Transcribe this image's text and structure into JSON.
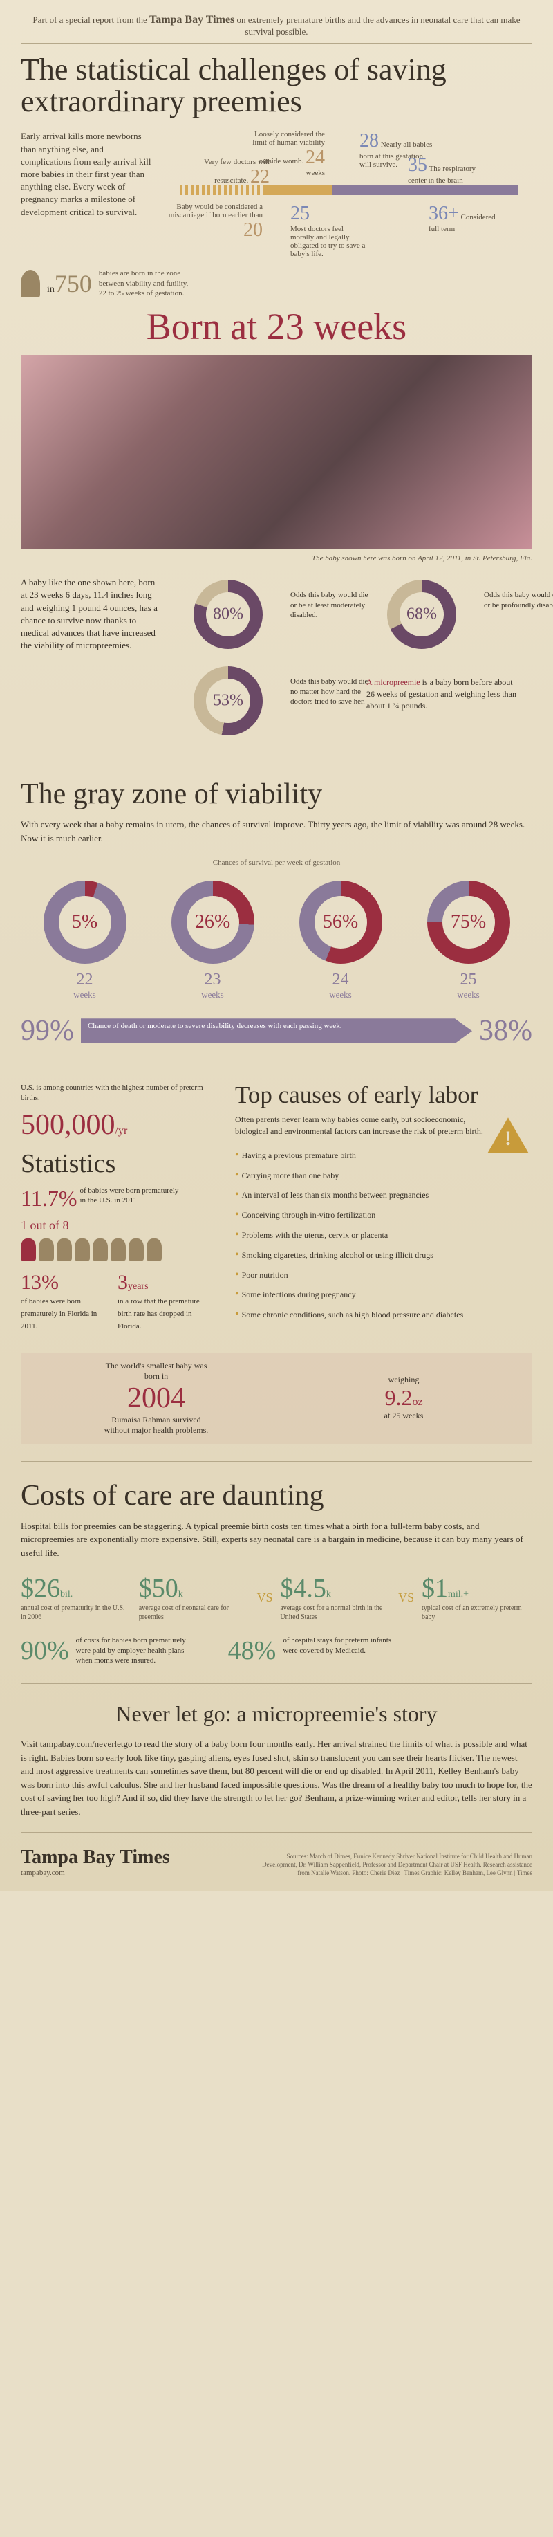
{
  "header": {
    "prefix": "Part of a special report from the",
    "brand": "Tampa Bay Times",
    "suffix": "on extremely premature births and the advances in neonatal care that can make survival possible."
  },
  "title": "The statistical challenges of saving extraordinary preemies",
  "intro": "Early arrival kills more newborns than anything else, and complications from early arrival kill more babies in their first year than anything else. Every week of pregnancy marks a milestone of development critical to survival.",
  "timeline": {
    "w20": {
      "n": "20",
      "label": "Baby would be considered a miscarriage if born earlier than"
    },
    "w22": {
      "n": "22",
      "label": "Very few doctors will resuscitate."
    },
    "w24": {
      "n": "24",
      "label": "Loosely considered the limit of human viability outside womb."
    },
    "w25": {
      "n": "25",
      "label": "Most doctors feel morally and legally obligated to try to save a baby's life."
    },
    "w28": {
      "n": "28",
      "label": "Nearly all babies born at this gestation will survive."
    },
    "w35": {
      "n": "35",
      "label": "The respiratory center in the brain matures."
    },
    "w36": {
      "n": "36+",
      "label": "Considered full term"
    },
    "wks": "weeks"
  },
  "stat750": {
    "pre": "in",
    "num": "750",
    "text": "babies are born in the zone between viability and futility, 22 to 25 weeks of gestation."
  },
  "born_title": "Born at 23 weeks",
  "baby_caption": "The baby shown here was born on April 12, 2011, in St. Petersburg, Fla.",
  "odds": {
    "intro": "A baby like the one shown here, born at 23 weeks 6 days, 11.4 inches long and weighing 1 pound 4 ounces, has a chance to survive now thanks to medical advances that have increased the viability of micropreemies.",
    "d80": {
      "v": "80%",
      "t": "Odds this baby would die or be at least moderately disabled."
    },
    "d68": {
      "v": "68%",
      "t": "Odds this baby would die or be profoundly disabled."
    },
    "d53": {
      "v": "53%",
      "t": "Odds this baby would die no matter how hard the doctors tried to save her."
    },
    "micro": "is a baby born before about 26 weeks of gestation and weighing less than about 1 ¾ pounds.",
    "micro_term": "A micropreemie"
  },
  "grayzone": {
    "title": "The gray zone of viability",
    "intro": "With every week that a baby remains in utero, the chances of survival improve. Thirty years ago, the limit of viability was around 28 weeks. Now it is much earlier.",
    "chart_label": "Chances of survival per week of gestation",
    "items": [
      {
        "pct": "5%",
        "wk": "22",
        "wklabel": "weeks",
        "fill": 5
      },
      {
        "pct": "26%",
        "wk": "23",
        "wklabel": "weeks",
        "fill": 26
      },
      {
        "pct": "56%",
        "wk": "24",
        "wklabel": "weeks",
        "fill": 56
      },
      {
        "pct": "75%",
        "wk": "25",
        "wklabel": "weeks",
        "fill": 75
      }
    ],
    "low": "99%",
    "high": "38%",
    "arrow": "Chance of death or moderate to severe disability decreases with each passing week."
  },
  "stats": {
    "us_note": "U.S. is among countries with the highest number of preterm births.",
    "num500": "500,000",
    "per": "/yr",
    "title": "Statistics",
    "p117": "11.7%",
    "p117_t": "of babies were born prematurely in the U.S. in 2011",
    "oneof8": "1 out of 8",
    "p13": {
      "n": "13%",
      "t": "of babies were born prematurely in Florida in 2011."
    },
    "y3": {
      "n": "3",
      "unit": "years",
      "t": "in a row that the premature birth rate has dropped in Florida."
    }
  },
  "causes": {
    "title": "Top causes of early labor",
    "intro": "Often parents never learn why babies come early, but socioeconomic, biological and environmental factors can increase the risk of preterm birth.",
    "list": [
      "Having a previous premature birth",
      "Carrying more than one baby",
      "An interval of less than six months between pregnancies",
      "Conceiving through in-vitro fertilization",
      "Problems with the uterus, cervix or placenta",
      "Smoking cigarettes, drinking alcohol or using illicit drugs",
      "Poor nutrition",
      "Some infections during pregnancy",
      "Some chronic conditions, such as high blood pressure and diabetes"
    ]
  },
  "smallest": {
    "pre": "The world's smallest baby was born in",
    "yr": "2004",
    "name": "Rumaisa Rahman survived without major health problems.",
    "wlabel": "weighing",
    "wt": "9.2",
    "unit": "oz",
    "at": "at 25 weeks"
  },
  "costs": {
    "title": "Costs of care are daunting",
    "intro": "Hospital bills for preemies can be staggering. A typical preemie birth costs ten times what a birth for a full-term baby costs, and micropreemies are exponentially more expensive. Still, experts say neonatal care is a bargain in medicine, because it can buy many years of useful life.",
    "c26": {
      "v": "$26",
      "u": "bil.",
      "t": "annual cost of prematurity in the U.S. in 2006"
    },
    "c50": {
      "v": "$50",
      "u": "k",
      "t": "average cost of neonatal care for preemies"
    },
    "c45": {
      "v": "$4.5",
      "u": "k",
      "t": "average cost for a normal birth in the United States"
    },
    "c1m": {
      "v": "$1",
      "u": "mil.+",
      "t": "typical cost of an extremely preterm baby"
    },
    "vs": "VS",
    "p90": {
      "v": "90%",
      "t": "of costs for babies born prematurely were paid by employer health plans when moms were insured."
    },
    "p48": {
      "v": "48%",
      "t": "of hospital stays for preterm infants were covered by Medicaid."
    }
  },
  "story": {
    "title": "Never let go: a micropreemie's story",
    "body": "Visit tampabay.com/neverletgo to read the story of a baby born four months early. Her arrival strained the limits of what is possible and what is right. Babies born so early look like tiny, gasping aliens, eyes fused shut, skin so translucent you can see their hearts flicker. The newest and most aggressive treatments can sometimes save them, but 80 percent will die or end up disabled. In April 2011, Kelley Benham's baby was born into this awful calculus. She and her husband faced impossible questions. Was the dream of a healthy baby too much to hope for, the cost of saving her too high? And if so, did they have the strength to let her go? Benham, a prize-winning writer and editor, tells her story in a three-part series."
  },
  "footer": {
    "brand": "Tampa Bay Times",
    "url": "tampabay.com",
    "credits": "Sources: March of Dimes, Eunice Kennedy Shriver National Institute for Child Health and Human Development, Dr. William Sappenfield, Professor and Department Chair at USF Health. Research assistance from Natalie Watson. Photo: Cherie Diez | Times Graphic: Kelley Benham, Lee Glynn | Times"
  }
}
